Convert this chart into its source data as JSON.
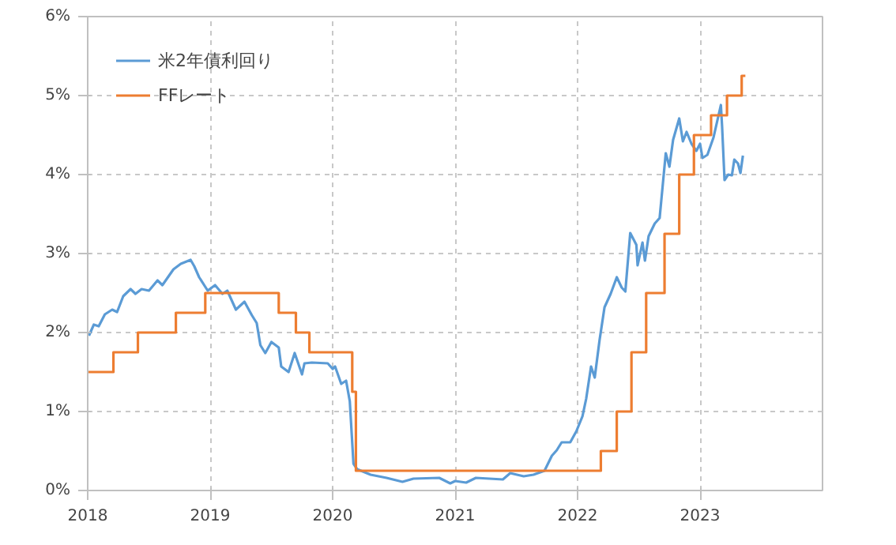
{
  "chart_data": {
    "type": "line",
    "xlim": [
      2018,
      2024
    ],
    "xticks": [
      2018,
      2019,
      2020,
      2021,
      2022,
      2023
    ],
    "ylim": [
      0,
      6
    ],
    "yticks": [
      {
        "value": 0,
        "label": "0%"
      },
      {
        "value": 1,
        "label": "1%"
      },
      {
        "value": 2,
        "label": "2%"
      },
      {
        "value": 3,
        "label": "3%"
      },
      {
        "value": 4,
        "label": "4%"
      },
      {
        "value": 5,
        "label": "5%"
      },
      {
        "value": 6,
        "label": "6%"
      }
    ],
    "grid": true,
    "legend": "top left",
    "series": [
      {
        "name": "米2年債利回り",
        "color": "#5b9bd5",
        "x": [
          2018.01,
          2018.05,
          2018.09,
          2018.14,
          2018.2,
          2018.24,
          2018.29,
          2018.35,
          2018.39,
          2018.44,
          2018.5,
          2018.57,
          2018.61,
          2018.7,
          2018.76,
          2018.84,
          2018.87,
          2018.91,
          2018.98,
          2019.04,
          2019.1,
          2019.14,
          2019.21,
          2019.28,
          2019.34,
          2019.38,
          2019.41,
          2019.45,
          2019.5,
          2019.56,
          2019.58,
          2019.64,
          2019.69,
          2019.75,
          2019.77,
          2019.83,
          2019.96,
          2020.0,
          2020.02,
          2020.07,
          2020.11,
          2020.14,
          2020.17,
          2020.2,
          2020.31,
          2020.44,
          2020.57,
          2020.66,
          2020.87,
          2020.96,
          2021.0,
          2021.09,
          2021.17,
          2021.39,
          2021.45,
          2021.56,
          2021.64,
          2021.73,
          2021.79,
          2021.83,
          2021.87,
          2021.94,
          2021.99,
          2022.04,
          2022.07,
          2022.11,
          2022.14,
          2022.18,
          2022.22,
          2022.27,
          2022.32,
          2022.36,
          2022.39,
          2022.43,
          2022.48,
          2022.49,
          2022.53,
          2022.55,
          2022.58,
          2022.63,
          2022.67,
          2022.72,
          2022.75,
          2022.78,
          2022.83,
          2022.86,
          2022.89,
          2022.93,
          2022.97,
          2023.0,
          2023.02,
          2023.06,
          2023.11,
          2023.17,
          2023.18,
          2023.2,
          2023.23,
          2023.26,
          2023.28,
          2023.31,
          2023.33,
          2023.35
        ],
        "values": [
          1.96,
          2.1,
          2.08,
          2.23,
          2.29,
          2.26,
          2.46,
          2.55,
          2.49,
          2.55,
          2.53,
          2.66,
          2.6,
          2.8,
          2.87,
          2.92,
          2.84,
          2.7,
          2.53,
          2.6,
          2.49,
          2.53,
          2.29,
          2.39,
          2.22,
          2.12,
          1.84,
          1.74,
          1.88,
          1.81,
          1.57,
          1.5,
          1.74,
          1.47,
          1.61,
          1.62,
          1.61,
          1.54,
          1.57,
          1.35,
          1.39,
          1.13,
          0.34,
          0.27,
          0.2,
          0.16,
          0.11,
          0.15,
          0.16,
          0.09,
          0.12,
          0.1,
          0.16,
          0.14,
          0.22,
          0.18,
          0.2,
          0.25,
          0.44,
          0.51,
          0.61,
          0.61,
          0.75,
          0.94,
          1.16,
          1.57,
          1.43,
          1.91,
          2.32,
          2.49,
          2.7,
          2.57,
          2.52,
          3.26,
          3.11,
          2.85,
          3.14,
          2.91,
          3.22,
          3.38,
          3.45,
          4.27,
          4.1,
          4.44,
          4.71,
          4.42,
          4.54,
          4.39,
          4.3,
          4.39,
          4.21,
          4.25,
          4.47,
          4.88,
          4.61,
          3.93,
          4.0,
          3.99,
          4.19,
          4.14,
          4.02,
          4.24
        ]
      },
      {
        "name": "FFレート",
        "color": "#ed7d31",
        "type": "step",
        "x": [
          2018.0,
          2018.21,
          2018.41,
          2018.72,
          2018.96,
          2019.56,
          2019.7,
          2019.81,
          2020.16,
          2020.19,
          2022.19,
          2022.32,
          2022.44,
          2022.56,
          2022.71,
          2022.83,
          2022.95,
          2023.09,
          2023.22,
          2023.34,
          2023.37
        ],
        "values": [
          1.5,
          1.75,
          2.0,
          2.25,
          2.5,
          2.25,
          2.0,
          1.75,
          1.25,
          0.25,
          0.5,
          1.0,
          1.75,
          2.5,
          3.25,
          4.0,
          4.5,
          4.75,
          5.0,
          5.25,
          5.25
        ]
      }
    ]
  }
}
